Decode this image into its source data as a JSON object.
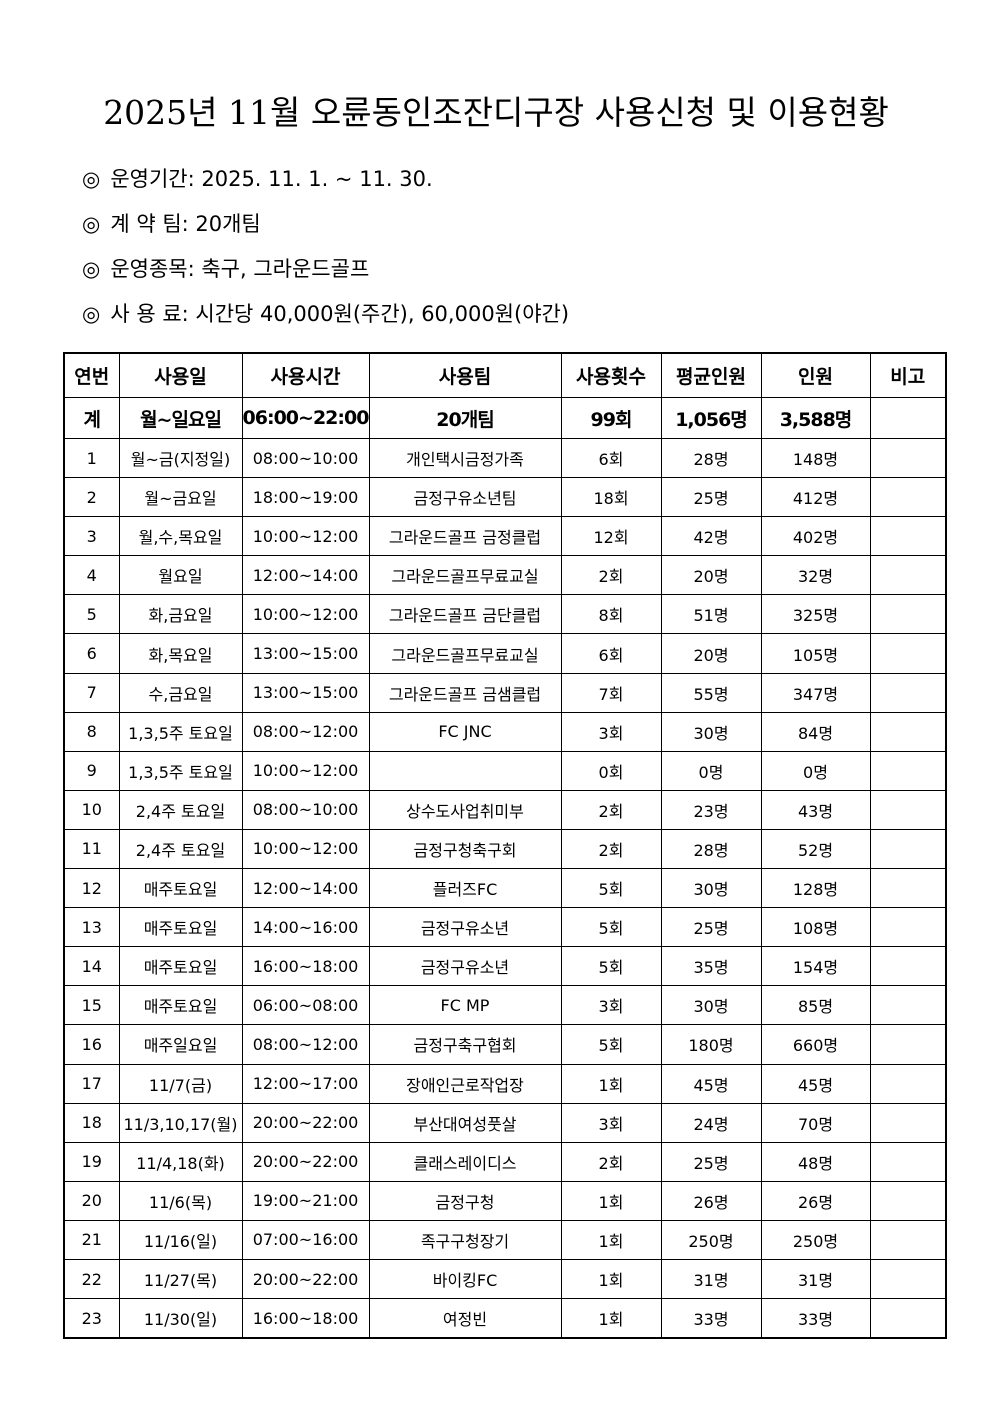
{
  "title": "2025년 11월 오륜동인조잔디구장 사용신청 및 이용현황",
  "info": [
    {
      "mark": "◎",
      "text": "운영기간: 2025. 11. 1. ~ 11. 30."
    },
    {
      "mark": "◎",
      "text": "계 약 팀: 20개팀"
    },
    {
      "mark": "◎",
      "text": "운영종목: 축구, 그라운드골프"
    },
    {
      "mark": "◎",
      "text": "사 용 료: 시간당 40,000원(주간), 60,000원(야간)"
    }
  ],
  "table": {
    "headers": [
      "연번",
      "사용일",
      "사용시간",
      "사용팀",
      "사용횟수",
      "평균인원",
      "인원",
      "비고"
    ],
    "total": [
      "계",
      "월~일요일",
      "06:00~22:00",
      "20개팀",
      "99회",
      "1,056명",
      "3,588명",
      ""
    ],
    "rows": [
      [
        "1",
        "월~금(지정일)",
        "08:00~10:00",
        "개인택시금정가족",
        "6회",
        "28명",
        "148명",
        ""
      ],
      [
        "2",
        "월~금요일",
        "18:00~19:00",
        "금정구유소년팀",
        "18회",
        "25명",
        "412명",
        ""
      ],
      [
        "3",
        "월,수,목요일",
        "10:00~12:00",
        "그라운드골프 금정클럽",
        "12회",
        "42명",
        "402명",
        ""
      ],
      [
        "4",
        "월요일",
        "12:00~14:00",
        "그라운드골프무료교실",
        "2회",
        "20명",
        "32명",
        ""
      ],
      [
        "5",
        "화,금요일",
        "10:00~12:00",
        "그라운드골프 금단클럽",
        "8회",
        "51명",
        "325명",
        ""
      ],
      [
        "6",
        "화,목요일",
        "13:00~15:00",
        "그라운드골프무료교실",
        "6회",
        "20명",
        "105명",
        ""
      ],
      [
        "7",
        "수,금요일",
        "13:00~15:00",
        "그라운드골프 금샘클럽",
        "7회",
        "55명",
        "347명",
        ""
      ],
      [
        "8",
        "1,3,5주 토요일",
        "08:00~12:00",
        "FC JNC",
        "3회",
        "30명",
        "84명",
        ""
      ],
      [
        "9",
        "1,3,5주 토요일",
        "10:00~12:00",
        "",
        "0회",
        "0명",
        "0명",
        ""
      ],
      [
        "10",
        "2,4주 토요일",
        "08:00~10:00",
        "상수도사업취미부",
        "2회",
        "23명",
        "43명",
        ""
      ],
      [
        "11",
        "2,4주 토요일",
        "10:00~12:00",
        "금정구청축구회",
        "2회",
        "28명",
        "52명",
        ""
      ],
      [
        "12",
        "매주토요일",
        "12:00~14:00",
        "플러즈FC",
        "5회",
        "30명",
        "128명",
        ""
      ],
      [
        "13",
        "매주토요일",
        "14:00~16:00",
        "금정구유소년",
        "5회",
        "25명",
        "108명",
        ""
      ],
      [
        "14",
        "매주토요일",
        "16:00~18:00",
        "금정구유소년",
        "5회",
        "35명",
        "154명",
        ""
      ],
      [
        "15",
        "매주토요일",
        "06:00~08:00",
        "FC MP",
        "3회",
        "30명",
        "85명",
        ""
      ],
      [
        "16",
        "매주일요일",
        "08:00~12:00",
        "금정구축구협회",
        "5회",
        "180명",
        "660명",
        ""
      ],
      [
        "17",
        "11/7(금)",
        "12:00~17:00",
        "장애인근로작업장",
        "1회",
        "45명",
        "45명",
        ""
      ],
      [
        "18",
        "11/3,10,17(월)",
        "20:00~22:00",
        "부산대여성풋살",
        "3회",
        "24명",
        "70명",
        ""
      ],
      [
        "19",
        "11/4,18(화)",
        "20:00~22:00",
        "클래스레이디스",
        "2회",
        "25명",
        "48명",
        ""
      ],
      [
        "20",
        "11/6(목)",
        "19:00~21:00",
        "금정구청",
        "1회",
        "26명",
        "26명",
        ""
      ],
      [
        "21",
        "11/16(일)",
        "07:00~16:00",
        "족구구청장기",
        "1회",
        "250명",
        "250명",
        ""
      ],
      [
        "22",
        "11/27(목)",
        "20:00~22:00",
        "바이킹FC",
        "1회",
        "31명",
        "31명",
        ""
      ],
      [
        "23",
        "11/30(일)",
        "16:00~18:00",
        "여정빈",
        "1회",
        "33명",
        "33명",
        ""
      ]
    ]
  }
}
